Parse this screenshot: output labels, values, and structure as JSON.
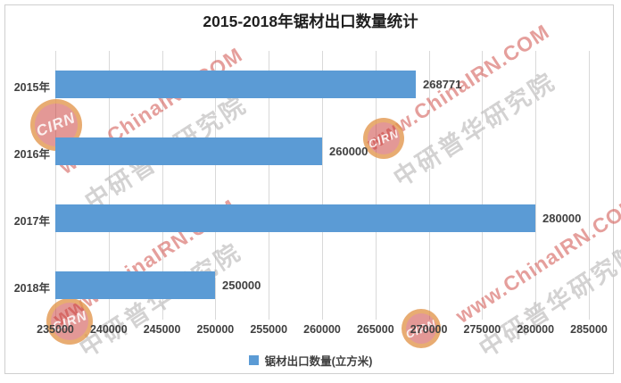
{
  "title": "2015-2018年锯材出口数量统计",
  "chart_data": {
    "type": "bar",
    "orientation": "horizontal",
    "title": "2015-2018年锯材出口数量统计",
    "categories": [
      "2015年",
      "2016年",
      "2017年",
      "2018年"
    ],
    "values": [
      268771,
      260000,
      280000,
      250000
    ],
    "series_name": "锯材出口数量(立方米)",
    "xlim": [
      235000,
      285000
    ],
    "x_ticks": [
      "235000",
      "240000",
      "245000",
      "250000",
      "255000",
      "260000",
      "265000",
      "270000",
      "275000",
      "280000",
      "285000"
    ],
    "grid": true,
    "legend_position": "bottom",
    "bar_color": "#5b9bd5"
  },
  "legend": {
    "items": [
      {
        "label": "锯材出口数量(立方米)",
        "color": "#5b9bd5"
      }
    ]
  },
  "watermark": {
    "url_text": "www.ChinaIRN.COM",
    "brand_text": "中研普华研究院",
    "logo_text": "CIRN",
    "url_color": "#d25a55",
    "brand_color": "#969494"
  },
  "colors": {
    "bar": "#5b9bd5",
    "grid": "#d9d9d9",
    "text": "#404040",
    "title": "#1f1f1f",
    "frame": "#cfcfcf"
  }
}
